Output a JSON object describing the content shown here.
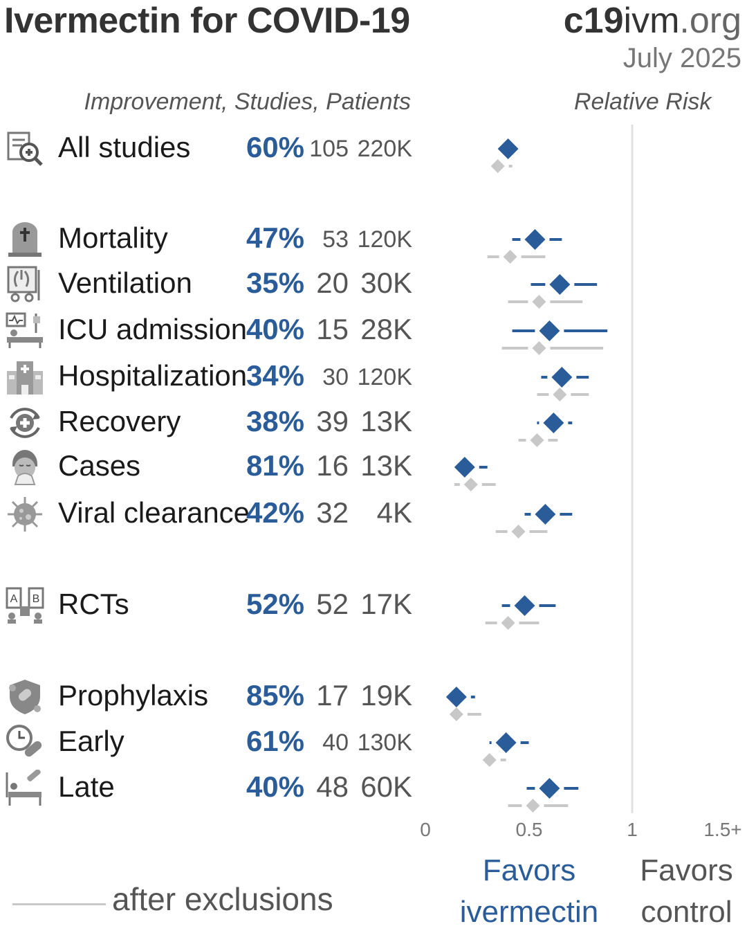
{
  "header": {
    "title": "Ivermectin for COVID-19",
    "site_bold": "c19",
    "site_rest": "ivm",
    "site_tld": ".org",
    "date": "July 2025"
  },
  "columns": {
    "left": "Improvement, Studies, Patients",
    "right": "Relative Risk"
  },
  "favors": {
    "left_line1": "Favors",
    "left_line2": "ivermectin",
    "right_line1": "Favors",
    "right_line2": "control"
  },
  "legend": {
    "after_exclusions": "after exclusions"
  },
  "colors": {
    "primary": "#2a5c9a",
    "exclusions": "#c8c8c8",
    "axis": "#e0e0e0",
    "icon": "#888888"
  },
  "rows": [
    {
      "label": "All studies",
      "icon": "study-search-icon",
      "improvement": "60%",
      "studies": "105",
      "patients": "220K"
    },
    {
      "label": "Mortality",
      "icon": "tombstone-icon",
      "improvement": "47%",
      "studies": "53",
      "patients": "120K"
    },
    {
      "label": "Ventilation",
      "icon": "ventilator-icon",
      "improvement": "35%",
      "studies": "20",
      "patients": "30K"
    },
    {
      "label": "ICU admission",
      "icon": "icu-bed-icon",
      "improvement": "40%",
      "studies": "15",
      "patients": "28K"
    },
    {
      "label": "Hospitalization",
      "icon": "hospital-icon",
      "improvement": "34%",
      "studies": "30",
      "patients": "120K"
    },
    {
      "label": "Recovery",
      "icon": "recovery-icon",
      "improvement": "38%",
      "studies": "39",
      "patients": "13K"
    },
    {
      "label": "Cases",
      "icon": "sick-person-icon",
      "improvement": "81%",
      "studies": "16",
      "patients": "13K"
    },
    {
      "label": "Viral clearance",
      "icon": "virus-icon",
      "improvement": "42%",
      "studies": "32",
      "patients": "4K"
    },
    {
      "label": "RCTs",
      "icon": "rct-icon",
      "improvement": "52%",
      "studies": "52",
      "patients": "17K"
    },
    {
      "label": "Prophylaxis",
      "icon": "shield-icon",
      "improvement": "85%",
      "studies": "17",
      "patients": "19K"
    },
    {
      "label": "Early",
      "icon": "clock-pill-icon",
      "improvement": "61%",
      "studies": "40",
      "patients": "130K"
    },
    {
      "label": "Late",
      "icon": "late-treatment-icon",
      "improvement": "40%",
      "studies": "48",
      "patients": "60K"
    }
  ],
  "chart_data": {
    "type": "forest",
    "xlabel": "",
    "ylabel": "",
    "xlim": [
      0,
      1.5
    ],
    "x_ticks": [
      "0",
      "0.5",
      "1",
      "1.5+"
    ],
    "reference_line": 1,
    "series": [
      {
        "name": "",
        "points": [
          {
            "category": "All studies",
            "rr": 0.4,
            "ci": [
              0.34,
              0.47
            ]
          },
          {
            "category": "Mortality",
            "rr": 0.53,
            "ci": [
              0.42,
              0.66
            ]
          },
          {
            "category": "Ventilation",
            "rr": 0.65,
            "ci": [
              0.51,
              0.83
            ]
          },
          {
            "category": "ICU admission",
            "rr": 0.6,
            "ci": [
              0.42,
              0.88
            ]
          },
          {
            "category": "Hospitalization",
            "rr": 0.66,
            "ci": [
              0.56,
              0.79
            ]
          },
          {
            "category": "Recovery",
            "rr": 0.62,
            "ci": [
              0.54,
              0.71
            ]
          },
          {
            "category": "Cases",
            "rr": 0.19,
            "ci": [
              0.13,
              0.3
            ]
          },
          {
            "category": "Viral clearance",
            "rr": 0.58,
            "ci": [
              0.48,
              0.71
            ]
          },
          {
            "category": "RCTs",
            "rr": 0.48,
            "ci": [
              0.37,
              0.63
            ]
          },
          {
            "category": "Prophylaxis",
            "rr": 0.15,
            "ci": [
              0.11,
              0.24
            ]
          },
          {
            "category": "Early",
            "rr": 0.39,
            "ci": [
              0.31,
              0.5
            ]
          },
          {
            "category": "Late",
            "rr": 0.6,
            "ci": [
              0.49,
              0.74
            ]
          }
        ]
      },
      {
        "name": "after exclusions",
        "points": [
          {
            "category": "All studies",
            "rr": 0.35,
            "ci": [
              0.3,
              0.42
            ]
          },
          {
            "category": "Mortality",
            "rr": 0.41,
            "ci": [
              0.3,
              0.58
            ]
          },
          {
            "category": "Ventilation",
            "rr": 0.55,
            "ci": [
              0.4,
              0.76
            ]
          },
          {
            "category": "ICU admission",
            "rr": 0.55,
            "ci": [
              0.37,
              0.86
            ]
          },
          {
            "category": "Hospitalization",
            "rr": 0.65,
            "ci": [
              0.54,
              0.79
            ]
          },
          {
            "category": "Recovery",
            "rr": 0.54,
            "ci": [
              0.45,
              0.64
            ]
          },
          {
            "category": "Cases",
            "rr": 0.22,
            "ci": [
              0.14,
              0.34
            ]
          },
          {
            "category": "Viral clearance",
            "rr": 0.45,
            "ci": [
              0.34,
              0.59
            ]
          },
          {
            "category": "RCTs",
            "rr": 0.4,
            "ci": [
              0.29,
              0.55
            ]
          },
          {
            "category": "Prophylaxis",
            "rr": 0.15,
            "ci": [
              0.1,
              0.27
            ]
          },
          {
            "category": "Early",
            "rr": 0.31,
            "ci": [
              0.26,
              0.39
            ]
          },
          {
            "category": "Late",
            "rr": 0.52,
            "ci": [
              0.4,
              0.69
            ]
          }
        ]
      }
    ]
  }
}
